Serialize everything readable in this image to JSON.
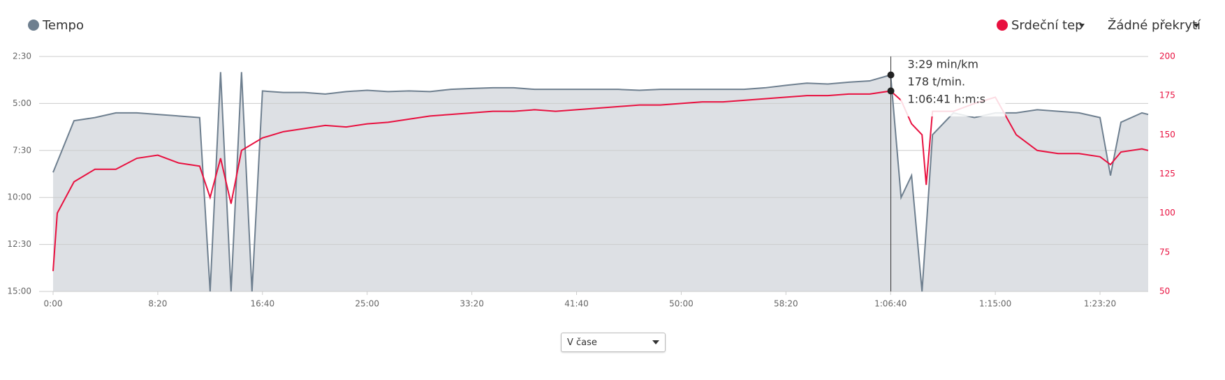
{
  "chart_data": {
    "type": "line",
    "xlim": [
      0,
      5230
    ],
    "xticks": [
      {
        "value": 0,
        "label": "0:00"
      },
      {
        "value": 500,
        "label": "8:20"
      },
      {
        "value": 1000,
        "label": "16:40"
      },
      {
        "value": 1500,
        "label": "25:00"
      },
      {
        "value": 2000,
        "label": "33:20"
      },
      {
        "value": 2500,
        "label": "41:40"
      },
      {
        "value": 3000,
        "label": "50:00"
      },
      {
        "value": 3500,
        "label": "58:20"
      },
      {
        "value": 4000,
        "label": "1:06:40"
      },
      {
        "value": 4500,
        "label": "1:15:00"
      },
      {
        "value": 5000,
        "label": "1:23:20"
      }
    ],
    "ylim": [
      900,
      150
    ],
    "yticks": [
      {
        "value": 150,
        "label": "2:30"
      },
      {
        "value": 300,
        "label": "5:00"
      },
      {
        "value": 450,
        "label": "7:30"
      },
      {
        "value": 600,
        "label": "10:00"
      },
      {
        "value": 750,
        "label": "12:30"
      },
      {
        "value": 900,
        "label": "15:00"
      }
    ],
    "y2lim": [
      50,
      200
    ],
    "y2ticks": [
      50,
      75,
      100,
      125,
      150,
      175,
      200
    ],
    "grid": true,
    "series": [
      {
        "name": "Tempo",
        "color": "#6e7f8f",
        "fill": "#dde0e4",
        "x": [
          0,
          100,
          200,
          300,
          400,
          500,
          600,
          700,
          750,
          800,
          850,
          900,
          950,
          1000,
          1100,
          1200,
          1300,
          1400,
          1500,
          1600,
          1700,
          1800,
          1900,
          2000,
          2100,
          2200,
          2300,
          2400,
          2500,
          2600,
          2700,
          2800,
          2900,
          3000,
          3100,
          3200,
          3300,
          3400,
          3500,
          3600,
          3700,
          3800,
          3900,
          4000,
          4050,
          4100,
          4150,
          4200,
          4300,
          4400,
          4500,
          4600,
          4700,
          4800,
          4900,
          5000,
          5050,
          5100,
          5200,
          5230
        ],
        "values": [
          520,
          355,
          345,
          330,
          330,
          335,
          340,
          345,
          900,
          200,
          900,
          200,
          900,
          260,
          265,
          265,
          270,
          262,
          258,
          262,
          260,
          262,
          255,
          252,
          250,
          250,
          255,
          255,
          255,
          255,
          255,
          258,
          255,
          255,
          255,
          255,
          255,
          250,
          242,
          235,
          238,
          232,
          228,
          209,
          600,
          530,
          900,
          400,
          330,
          345,
          330,
          330,
          320,
          325,
          330,
          345,
          530,
          360,
          330,
          335
        ]
      },
      {
        "name": "Srdeční tep",
        "color": "#e8103f",
        "axis": "y2",
        "x": [
          0,
          20,
          100,
          200,
          300,
          400,
          500,
          600,
          700,
          750,
          800,
          850,
          900,
          1000,
          1100,
          1200,
          1300,
          1400,
          1500,
          1600,
          1700,
          1800,
          1900,
          2000,
          2100,
          2200,
          2300,
          2400,
          2500,
          2600,
          2700,
          2800,
          2900,
          3000,
          3100,
          3200,
          3300,
          3400,
          3500,
          3600,
          3700,
          3800,
          3900,
          4000,
          4050,
          4100,
          4150,
          4170,
          4200,
          4300,
          4400,
          4500,
          4600,
          4700,
          4800,
          4900,
          5000,
          5050,
          5100,
          5200,
          5230
        ],
        "values": [
          63,
          100,
          120,
          128,
          128,
          135,
          137,
          132,
          130,
          110,
          135,
          106,
          140,
          148,
          152,
          154,
          156,
          155,
          157,
          158,
          160,
          162,
          163,
          164,
          165,
          165,
          166,
          165,
          166,
          167,
          168,
          169,
          169,
          170,
          171,
          171,
          172,
          173,
          174,
          175,
          175,
          176,
          176,
          178,
          172,
          157,
          150,
          118,
          165,
          165,
          170,
          174,
          150,
          140,
          138,
          138,
          136,
          131,
          139,
          141,
          140
        ]
      }
    ],
    "overlay_label": "Žádné překrytí",
    "tooltip": {
      "x": 4001,
      "pace": 209,
      "heart_rate": 178,
      "lines": [
        "3:29 min/km",
        "178 t/min.",
        "1:06:41 h:m:s"
      ]
    },
    "x_mode": "V čase"
  }
}
